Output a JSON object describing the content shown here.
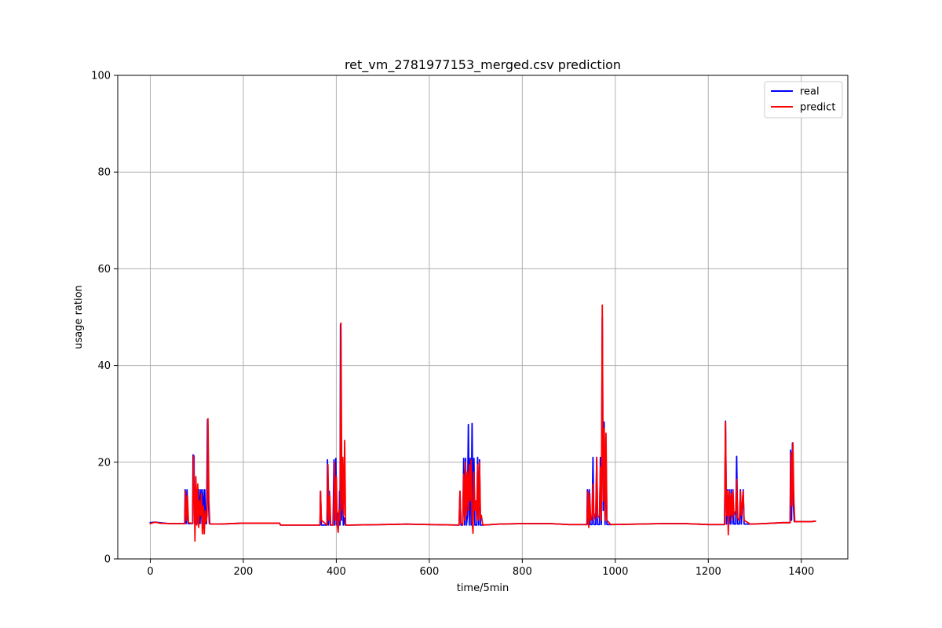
{
  "chart_data": {
    "type": "line",
    "title": "ret_vm_2781977153_merged.csv prediction",
    "xlabel": "time/5min",
    "ylabel": "usage ration",
    "xlim": [
      -70,
      1500
    ],
    "ylim": [
      0,
      100
    ],
    "x_ticks": [
      0,
      200,
      400,
      600,
      800,
      1000,
      1200,
      1400
    ],
    "y_ticks": [
      0,
      20,
      40,
      60,
      80,
      100
    ],
    "grid": true,
    "legend_position": "upper-right",
    "colors": {
      "real": "#0000ff",
      "predict": "#ff0000",
      "grid": "#b0b0b0"
    },
    "series": [
      {
        "name": "real",
        "color": "#0000ff",
        "points": [
          [
            0,
            7.5
          ],
          [
            10,
            7.6
          ],
          [
            20,
            7.5
          ],
          [
            40,
            7.3
          ],
          [
            60,
            7.3
          ],
          [
            74,
            7.3
          ],
          [
            75,
            14.3
          ],
          [
            77,
            7.3
          ],
          [
            79,
            14.3
          ],
          [
            81,
            7.3
          ],
          [
            91,
            7.3
          ],
          [
            92,
            21.5
          ],
          [
            94,
            21.3
          ],
          [
            95,
            7.3
          ],
          [
            97,
            14.3
          ],
          [
            99,
            7.3
          ],
          [
            101,
            14.3
          ],
          [
            103,
            7.3
          ],
          [
            105,
            14.3
          ],
          [
            107,
            7.3
          ],
          [
            109,
            14.3
          ],
          [
            111,
            7.3
          ],
          [
            113,
            14.3
          ],
          [
            115,
            7.3
          ],
          [
            117,
            14.3
          ],
          [
            119,
            7.3
          ],
          [
            121,
            7.3
          ],
          [
            123,
            28.8
          ],
          [
            125,
            12.0
          ],
          [
            127,
            7.3
          ],
          [
            130,
            7.2
          ],
          [
            150,
            7.2
          ],
          [
            200,
            7.4
          ],
          [
            250,
            7.4
          ],
          [
            278,
            7.4
          ],
          [
            280,
            7.0
          ],
          [
            300,
            7.0
          ],
          [
            365,
            7.0
          ],
          [
            366,
            14.0
          ],
          [
            368,
            7.0
          ],
          [
            380,
            7.0
          ],
          [
            381,
            20.5
          ],
          [
            383,
            7.0
          ],
          [
            385,
            14.0
          ],
          [
            387,
            7.0
          ],
          [
            393,
            7.0
          ],
          [
            395,
            20.5
          ],
          [
            397,
            7.0
          ],
          [
            399,
            20.8
          ],
          [
            401,
            7.0
          ],
          [
            403,
            9.5
          ],
          [
            405,
            7.0
          ],
          [
            406,
            7.0
          ],
          [
            407,
            14.0
          ],
          [
            408,
            7.0
          ],
          [
            409,
            48.5
          ],
          [
            411,
            8.0
          ],
          [
            413,
            20.5
          ],
          [
            415,
            7.0
          ],
          [
            417,
            8.5
          ],
          [
            419,
            7.0
          ],
          [
            430,
            7.0
          ],
          [
            500,
            7.1
          ],
          [
            550,
            7.2
          ],
          [
            600,
            7.1
          ],
          [
            664,
            7.0
          ],
          [
            666,
            14.0
          ],
          [
            668,
            7.0
          ],
          [
            672,
            7.0
          ],
          [
            674,
            20.8
          ],
          [
            676,
            7.0
          ],
          [
            678,
            20.8
          ],
          [
            680,
            7.0
          ],
          [
            682,
            9.0
          ],
          [
            684,
            27.8
          ],
          [
            686,
            7.0
          ],
          [
            688,
            20.8
          ],
          [
            690,
            7.0
          ],
          [
            692,
            28.0
          ],
          [
            694,
            7.0
          ],
          [
            696,
            20.8
          ],
          [
            698,
            7.0
          ],
          [
            702,
            7.0
          ],
          [
            704,
            21.0
          ],
          [
            706,
            7.0
          ],
          [
            708,
            20.5
          ],
          [
            710,
            7.0
          ],
          [
            715,
            7.0
          ],
          [
            750,
            7.2
          ],
          [
            800,
            7.3
          ],
          [
            860,
            7.3
          ],
          [
            900,
            7.1
          ],
          [
            939,
            7.1
          ],
          [
            940,
            14.3
          ],
          [
            942,
            7.1
          ],
          [
            944,
            14.3
          ],
          [
            946,
            7.1
          ],
          [
            950,
            7.1
          ],
          [
            952,
            21.0
          ],
          [
            954,
            7.1
          ],
          [
            958,
            7.1
          ],
          [
            960,
            21.0
          ],
          [
            962,
            7.1
          ],
          [
            966,
            7.1
          ],
          [
            968,
            21.0
          ],
          [
            970,
            7.1
          ],
          [
            972,
            50.0
          ],
          [
            974,
            10.0
          ],
          [
            976,
            28.3
          ],
          [
            978,
            7.1
          ],
          [
            980,
            22.0
          ],
          [
            982,
            7.1
          ],
          [
            990,
            7.1
          ],
          [
            1050,
            7.2
          ],
          [
            1100,
            7.3
          ],
          [
            1150,
            7.3
          ],
          [
            1200,
            7.1
          ],
          [
            1235,
            7.1
          ],
          [
            1237,
            28.5
          ],
          [
            1239,
            7.2
          ],
          [
            1241,
            14.3
          ],
          [
            1243,
            7.2
          ],
          [
            1245,
            14.3
          ],
          [
            1247,
            7.2
          ],
          [
            1249,
            14.3
          ],
          [
            1251,
            7.2
          ],
          [
            1253,
            14.3
          ],
          [
            1255,
            7.2
          ],
          [
            1259,
            7.2
          ],
          [
            1261,
            21.2
          ],
          [
            1263,
            7.2
          ],
          [
            1267,
            7.2
          ],
          [
            1269,
            14.3
          ],
          [
            1271,
            7.2
          ],
          [
            1275,
            14.3
          ],
          [
            1277,
            7.2
          ],
          [
            1290,
            7.2
          ],
          [
            1320,
            7.3
          ],
          [
            1360,
            7.5
          ],
          [
            1376,
            7.5
          ],
          [
            1377,
            22.5
          ],
          [
            1379,
            8.0
          ],
          [
            1381,
            24.0
          ],
          [
            1383,
            11.0
          ],
          [
            1385,
            7.7
          ],
          [
            1400,
            7.7
          ],
          [
            1420,
            7.7
          ],
          [
            1430,
            7.8
          ]
        ]
      },
      {
        "name": "predict",
        "color": "#ff0000",
        "points": [
          [
            0,
            7.3
          ],
          [
            10,
            7.6
          ],
          [
            20,
            7.4
          ],
          [
            40,
            7.3
          ],
          [
            60,
            7.3
          ],
          [
            74,
            7.3
          ],
          [
            76,
            14.0
          ],
          [
            78,
            8.0
          ],
          [
            80,
            13.0
          ],
          [
            82,
            7.5
          ],
          [
            91,
            7.3
          ],
          [
            93,
            21.3
          ],
          [
            95,
            10.0
          ],
          [
            96,
            3.7
          ],
          [
            98,
            17.0
          ],
          [
            100,
            7.0
          ],
          [
            102,
            15.5
          ],
          [
            104,
            6.5
          ],
          [
            106,
            12.0
          ],
          [
            108,
            9.0
          ],
          [
            110,
            13.5
          ],
          [
            112,
            5.2
          ],
          [
            114,
            11.0
          ],
          [
            116,
            5.2
          ],
          [
            118,
            10.0
          ],
          [
            120,
            7.5
          ],
          [
            122,
            9.0
          ],
          [
            124,
            29.0
          ],
          [
            126,
            12.0
          ],
          [
            128,
            7.3
          ],
          [
            130,
            7.2
          ],
          [
            150,
            7.2
          ],
          [
            200,
            7.4
          ],
          [
            250,
            7.4
          ],
          [
            278,
            7.4
          ],
          [
            280,
            7.0
          ],
          [
            300,
            7.0
          ],
          [
            365,
            7.0
          ],
          [
            366,
            14.0
          ],
          [
            368,
            8.0
          ],
          [
            380,
            7.0
          ],
          [
            382,
            19.5
          ],
          [
            384,
            8.0
          ],
          [
            386,
            13.0
          ],
          [
            388,
            7.0
          ],
          [
            394,
            7.0
          ],
          [
            396,
            20.0
          ],
          [
            398,
            8.0
          ],
          [
            400,
            17.0
          ],
          [
            402,
            7.0
          ],
          [
            404,
            5.5
          ],
          [
            406,
            10.0
          ],
          [
            408,
            8.0
          ],
          [
            410,
            48.8
          ],
          [
            412,
            10.0
          ],
          [
            414,
            21.0
          ],
          [
            416,
            9.0
          ],
          [
            418,
            24.5
          ],
          [
            420,
            7.0
          ],
          [
            430,
            7.0
          ],
          [
            500,
            7.1
          ],
          [
            550,
            7.2
          ],
          [
            600,
            7.1
          ],
          [
            664,
            7.0
          ],
          [
            666,
            14.0
          ],
          [
            668,
            7.5
          ],
          [
            672,
            7.0
          ],
          [
            674,
            17.5
          ],
          [
            676,
            8.0
          ],
          [
            678,
            20.0
          ],
          [
            680,
            9.0
          ],
          [
            682,
            18.0
          ],
          [
            684,
            10.0
          ],
          [
            686,
            19.5
          ],
          [
            688,
            12.0
          ],
          [
            690,
            20.5
          ],
          [
            692,
            8.0
          ],
          [
            694,
            5.3
          ],
          [
            696,
            18.0
          ],
          [
            698,
            10.0
          ],
          [
            700,
            12.0
          ],
          [
            702,
            8.0
          ],
          [
            704,
            19.5
          ],
          [
            706,
            8.0
          ],
          [
            708,
            20.0
          ],
          [
            710,
            8.5
          ],
          [
            712,
            9.0
          ],
          [
            715,
            7.0
          ],
          [
            750,
            7.2
          ],
          [
            800,
            7.3
          ],
          [
            860,
            7.3
          ],
          [
            900,
            7.1
          ],
          [
            939,
            7.1
          ],
          [
            941,
            14.0
          ],
          [
            943,
            6.5
          ],
          [
            945,
            13.5
          ],
          [
            947,
            8.0
          ],
          [
            950,
            9.0
          ],
          [
            952,
            15.5
          ],
          [
            954,
            8.0
          ],
          [
            958,
            9.5
          ],
          [
            960,
            21.0
          ],
          [
            962,
            8.5
          ],
          [
            966,
            9.0
          ],
          [
            968,
            19.0
          ],
          [
            970,
            8.0
          ],
          [
            972,
            52.5
          ],
          [
            974,
            12.0
          ],
          [
            976,
            27.0
          ],
          [
            978,
            8.0
          ],
          [
            980,
            26.0
          ],
          [
            982,
            8.0
          ],
          [
            990,
            7.1
          ],
          [
            1050,
            7.2
          ],
          [
            1100,
            7.3
          ],
          [
            1150,
            7.3
          ],
          [
            1200,
            7.1
          ],
          [
            1235,
            7.1
          ],
          [
            1237,
            28.3
          ],
          [
            1239,
            9.0
          ],
          [
            1241,
            14.0
          ],
          [
            1243,
            5.0
          ],
          [
            1245,
            14.0
          ],
          [
            1247,
            9.0
          ],
          [
            1249,
            13.5
          ],
          [
            1251,
            8.0
          ],
          [
            1253,
            14.0
          ],
          [
            1255,
            9.0
          ],
          [
            1259,
            10.0
          ],
          [
            1261,
            16.5
          ],
          [
            1263,
            8.5
          ],
          [
            1267,
            8.0
          ],
          [
            1269,
            14.0
          ],
          [
            1271,
            9.0
          ],
          [
            1275,
            14.0
          ],
          [
            1277,
            8.0
          ],
          [
            1290,
            7.2
          ],
          [
            1320,
            7.3
          ],
          [
            1360,
            7.5
          ],
          [
            1376,
            7.5
          ],
          [
            1378,
            22.0
          ],
          [
            1380,
            11.0
          ],
          [
            1382,
            24.0
          ],
          [
            1384,
            12.0
          ],
          [
            1386,
            7.7
          ],
          [
            1400,
            7.7
          ],
          [
            1420,
            7.7
          ],
          [
            1430,
            7.8
          ]
        ]
      }
    ]
  }
}
